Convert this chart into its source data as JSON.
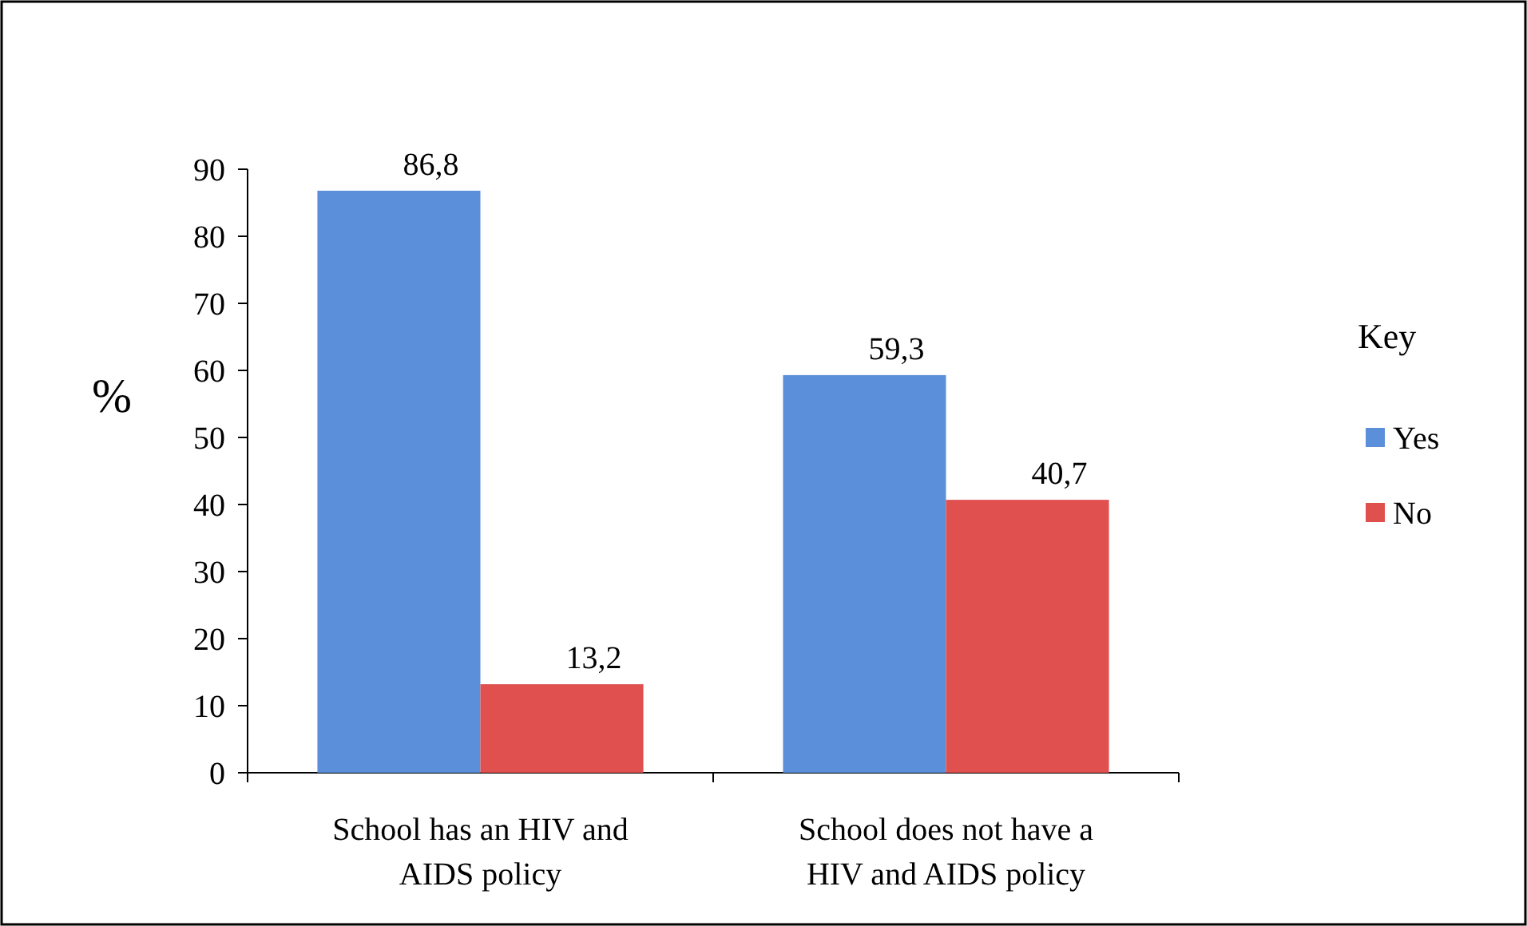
{
  "chart_data": {
    "type": "bar",
    "ylabel": "%",
    "legend_title": "Key",
    "legend": "right",
    "grid": false,
    "categories": [
      "School has an HIV and AIDS policy",
      "School does not have a HIV and AIDS policy"
    ],
    "series": [
      {
        "name": "Yes",
        "color": "#5b8fd9",
        "values": [
          86.8,
          59.3
        ],
        "value_labels": [
          "86,8",
          "59,3"
        ]
      },
      {
        "name": "No",
        "color": "#e0504f",
        "values": [
          13.2,
          40.7
        ],
        "value_labels": [
          "13,2",
          "40,7"
        ]
      }
    ],
    "ylim": [
      0,
      90
    ],
    "yticks": [
      0,
      10,
      20,
      30,
      40,
      50,
      60,
      70,
      80,
      90
    ]
  }
}
